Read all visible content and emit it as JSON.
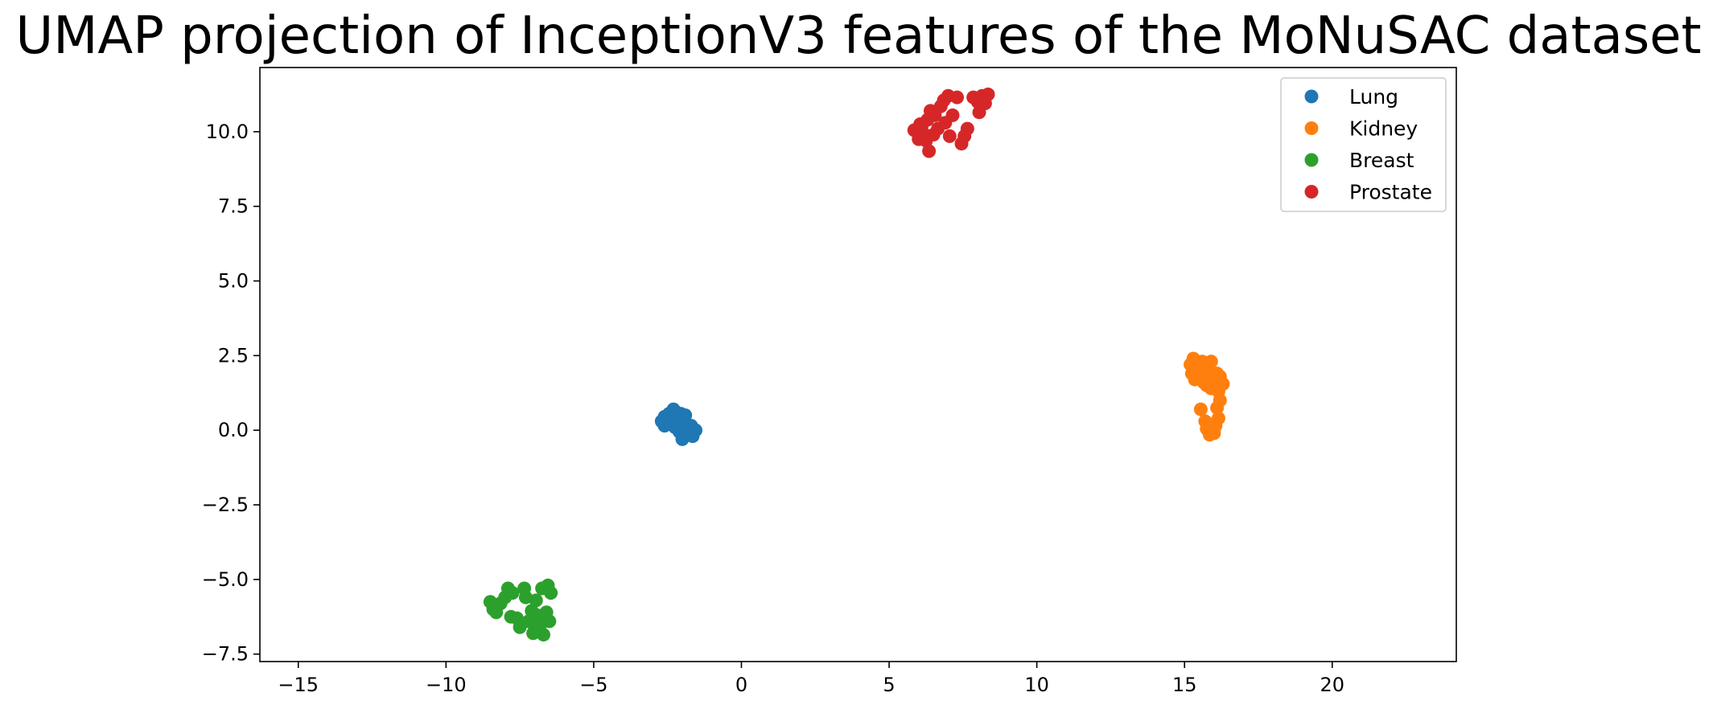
{
  "chart_data": {
    "type": "scatter",
    "title": "UMAP projection of InceptionV3 features of the MoNuSAC dataset",
    "xlabel": "",
    "ylabel": "",
    "xlim": [
      -16.3,
      24.2
    ],
    "ylim": [
      -7.75,
      12.15
    ],
    "xticks": [
      -15,
      -10,
      -5,
      0,
      5,
      10,
      15,
      20
    ],
    "xtick_labels": [
      "−15",
      "−10",
      "−5",
      "0",
      "5",
      "10",
      "15",
      "20"
    ],
    "yticks": [
      -7.5,
      -5.0,
      -2.5,
      0.0,
      2.5,
      5.0,
      7.5,
      10.0
    ],
    "ytick_labels": [
      "−7.5",
      "−5.0",
      "−2.5",
      "0.0",
      "2.5",
      "5.0",
      "7.5",
      "10.0"
    ],
    "grid": false,
    "legend_position": "top-right",
    "series": [
      {
        "name": "Lung",
        "color": "#1f77b4",
        "points": [
          [
            -2.7,
            0.3
          ],
          [
            -2.6,
            0.45
          ],
          [
            -2.55,
            0.2
          ],
          [
            -2.45,
            0.55
          ],
          [
            -2.4,
            0.35
          ],
          [
            -2.3,
            0.7
          ],
          [
            -2.25,
            0.1
          ],
          [
            -2.2,
            0.6
          ],
          [
            -2.15,
            0.4
          ],
          [
            -2.1,
            -0.05
          ],
          [
            -2.05,
            0.55
          ],
          [
            -2.0,
            -0.3
          ],
          [
            -1.95,
            0.25
          ],
          [
            -1.9,
            0.5
          ],
          [
            -1.85,
            0.05
          ],
          [
            -1.8,
            -0.1
          ],
          [
            -1.7,
            0.15
          ],
          [
            -1.65,
            -0.2
          ],
          [
            -1.55,
            0.0
          ],
          [
            -2.35,
            0.25
          ],
          [
            -2.6,
            0.15
          ],
          [
            -1.95,
            0.05
          ]
        ]
      },
      {
        "name": "Kidney",
        "color": "#ff7f0e",
        "points": [
          [
            15.2,
            2.2
          ],
          [
            15.3,
            2.4
          ],
          [
            15.25,
            1.9
          ],
          [
            15.35,
            1.7
          ],
          [
            15.5,
            2.1
          ],
          [
            15.6,
            2.3
          ],
          [
            15.7,
            1.8
          ],
          [
            15.75,
            1.5
          ],
          [
            15.8,
            2.0
          ],
          [
            15.9,
            2.3
          ],
          [
            16.0,
            1.6
          ],
          [
            16.1,
            1.9
          ],
          [
            16.2,
            1.8
          ],
          [
            16.3,
            1.55
          ],
          [
            16.15,
            1.3
          ],
          [
            16.2,
            1.0
          ],
          [
            16.1,
            0.75
          ],
          [
            16.15,
            0.4
          ],
          [
            16.05,
            0.15
          ],
          [
            16.0,
            -0.1
          ],
          [
            15.85,
            -0.15
          ],
          [
            15.75,
            0.05
          ],
          [
            15.7,
            0.3
          ],
          [
            15.55,
            0.7
          ],
          [
            15.65,
            1.6
          ],
          [
            15.9,
            1.4
          ],
          [
            16.0,
            0.2
          ],
          [
            15.4,
            2.0
          ]
        ]
      },
      {
        "name": "Breast",
        "color": "#2ca02c",
        "points": [
          [
            -8.5,
            -5.75
          ],
          [
            -8.3,
            -6.1
          ],
          [
            -8.15,
            -5.8
          ],
          [
            -8.0,
            -5.6
          ],
          [
            -7.9,
            -5.3
          ],
          [
            -7.8,
            -6.25
          ],
          [
            -7.75,
            -5.45
          ],
          [
            -7.6,
            -6.3
          ],
          [
            -7.5,
            -6.6
          ],
          [
            -7.35,
            -5.3
          ],
          [
            -7.3,
            -5.6
          ],
          [
            -7.2,
            -6.4
          ],
          [
            -7.1,
            -6.05
          ],
          [
            -7.05,
            -6.8
          ],
          [
            -6.95,
            -5.7
          ],
          [
            -6.9,
            -6.2
          ],
          [
            -6.8,
            -6.5
          ],
          [
            -6.75,
            -5.3
          ],
          [
            -6.7,
            -6.85
          ],
          [
            -6.6,
            -6.1
          ],
          [
            -6.55,
            -5.2
          ],
          [
            -6.5,
            -6.4
          ],
          [
            -6.45,
            -5.45
          ],
          [
            -8.4,
            -6.0
          ],
          [
            -7.0,
            -6.55
          ]
        ]
      },
      {
        "name": "Prostate",
        "color": "#d62728",
        "points": [
          [
            5.85,
            10.05
          ],
          [
            6.0,
            9.75
          ],
          [
            6.05,
            10.25
          ],
          [
            6.15,
            9.95
          ],
          [
            6.25,
            9.7
          ],
          [
            6.35,
            9.35
          ],
          [
            6.3,
            10.4
          ],
          [
            6.4,
            10.7
          ],
          [
            6.55,
            10.55
          ],
          [
            6.65,
            10.1
          ],
          [
            6.75,
            10.85
          ],
          [
            6.85,
            11.05
          ],
          [
            7.0,
            11.2
          ],
          [
            7.05,
            9.85
          ],
          [
            7.15,
            10.55
          ],
          [
            7.3,
            11.15
          ],
          [
            7.45,
            9.6
          ],
          [
            7.55,
            9.85
          ],
          [
            7.65,
            10.1
          ],
          [
            7.85,
            11.15
          ],
          [
            8.05,
            10.65
          ],
          [
            8.15,
            11.2
          ],
          [
            8.25,
            10.95
          ],
          [
            8.35,
            11.25
          ],
          [
            6.1,
            10.15
          ],
          [
            6.5,
            9.9
          ],
          [
            6.9,
            10.3
          ],
          [
            8.0,
            11.0
          ]
        ]
      }
    ]
  }
}
